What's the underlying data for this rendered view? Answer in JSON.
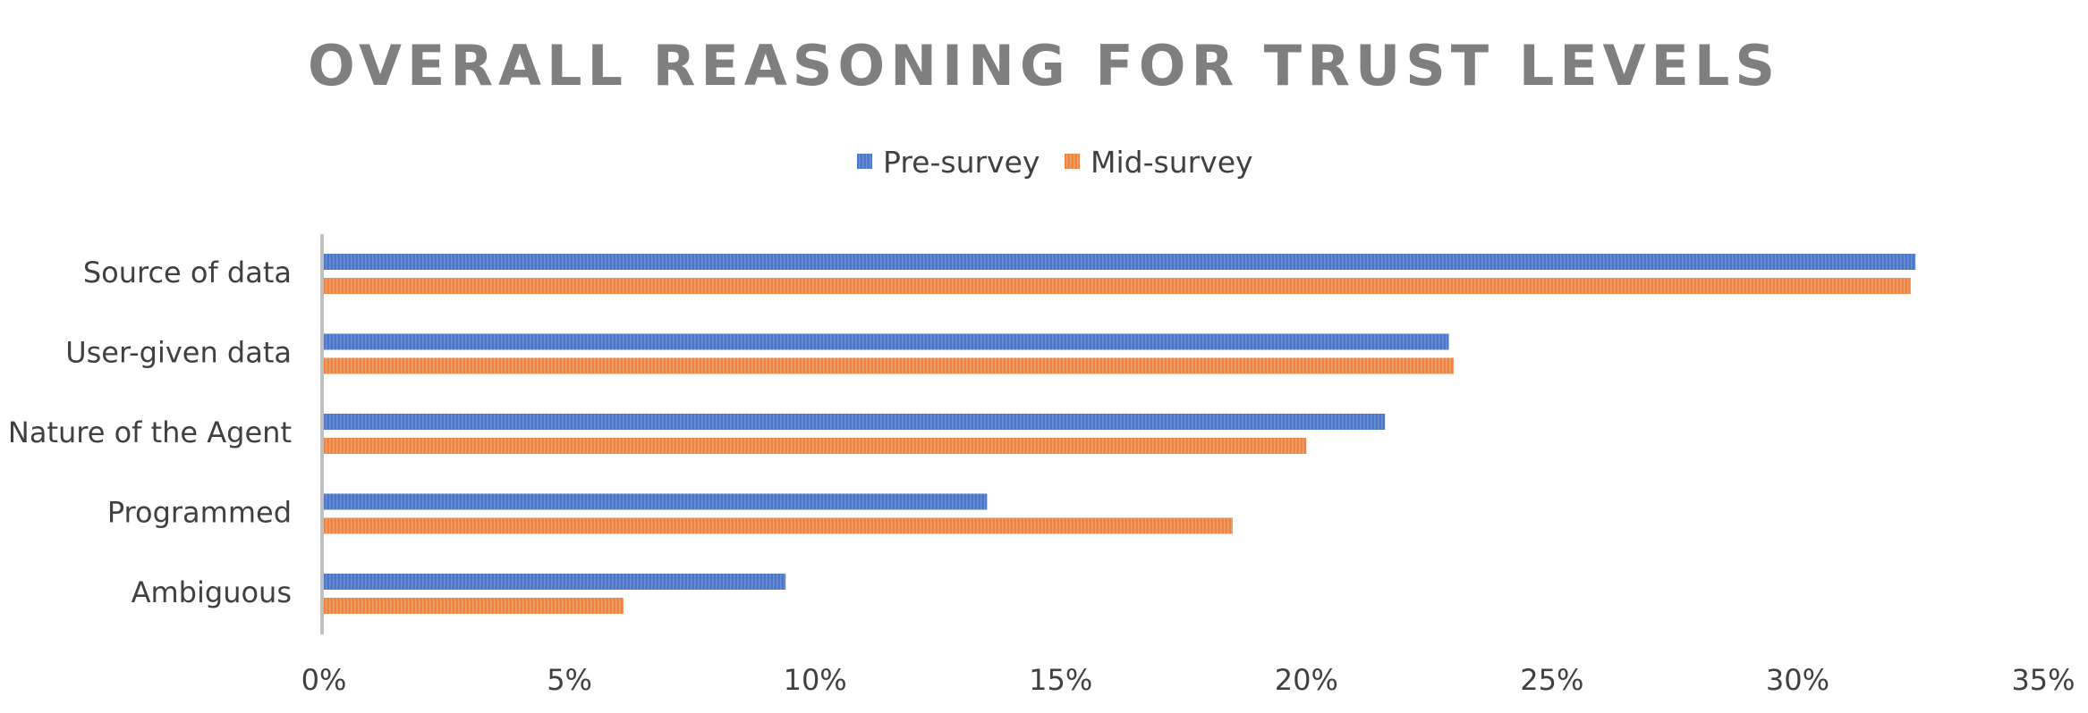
{
  "chart_data": {
    "type": "bar",
    "orientation": "horizontal",
    "title": "OVERALL REASONING FOR TRUST LEVELS",
    "categories": [
      "Source of data",
      "User-given data",
      "Nature of the Agent",
      "Programmed",
      "Ambiguous"
    ],
    "series": [
      {
        "name": "Pre-survey",
        "color": "#4472c4",
        "values": [
          32.4,
          22.9,
          21.6,
          13.5,
          9.4
        ]
      },
      {
        "name": "Mid-survey",
        "color": "#ed7d31",
        "values": [
          32.3,
          23.0,
          20.0,
          18.5,
          6.1
        ]
      }
    ],
    "xlim": [
      0,
      35
    ],
    "xticks": [
      0,
      5,
      10,
      15,
      20,
      25,
      30,
      35
    ],
    "xtick_labels": [
      "0%",
      "5%",
      "10%",
      "15%",
      "20%",
      "25%",
      "30%",
      "35%"
    ],
    "xlabel": "",
    "ylabel": "",
    "grid": false,
    "legend_position": "top-center"
  }
}
